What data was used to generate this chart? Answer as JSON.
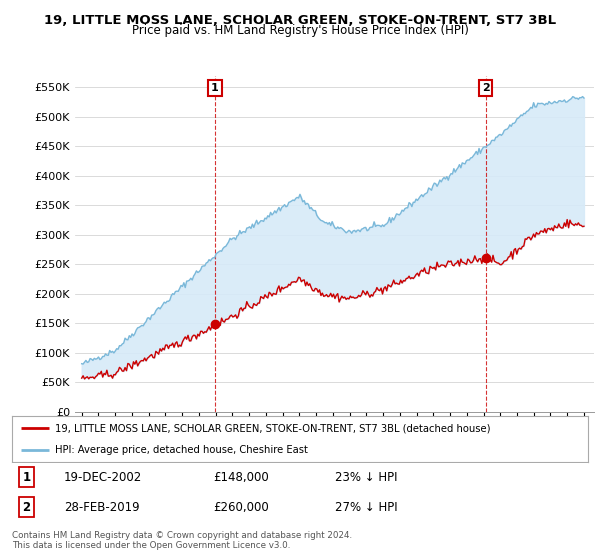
{
  "title": "19, LITTLE MOSS LANE, SCHOLAR GREEN, STOKE-ON-TRENT, ST7 3BL",
  "subtitle": "Price paid vs. HM Land Registry's House Price Index (HPI)",
  "ylim": [
    0,
    570000
  ],
  "yticks": [
    0,
    50000,
    100000,
    150000,
    200000,
    250000,
    300000,
    350000,
    400000,
    450000,
    500000,
    550000
  ],
  "ytick_labels": [
    "£0",
    "£50K",
    "£100K",
    "£150K",
    "£200K",
    "£250K",
    "£300K",
    "£350K",
    "£400K",
    "£450K",
    "£500K",
    "£550K"
  ],
  "hpi_color": "#7ab8d9",
  "hpi_fill_color": "#d6eaf8",
  "price_color": "#cc0000",
  "marker1_date_str": "19-DEC-2002",
  "marker1_price": 148000,
  "marker1_hpi_pct": "23% ↓ HPI",
  "marker2_date_str": "28-FEB-2019",
  "marker2_price": 260000,
  "marker2_hpi_pct": "27% ↓ HPI",
  "legend_label_price": "19, LITTLE MOSS LANE, SCHOLAR GREEN, STOKE-ON-TRENT, ST7 3BL (detached house)",
  "legend_label_hpi": "HPI: Average price, detached house, Cheshire East",
  "footer": "Contains HM Land Registry data © Crown copyright and database right 2024.\nThis data is licensed under the Open Government Licence v3.0.",
  "background_color": "#ffffff",
  "grid_color": "#cccccc",
  "fill_alpha": 0.35
}
